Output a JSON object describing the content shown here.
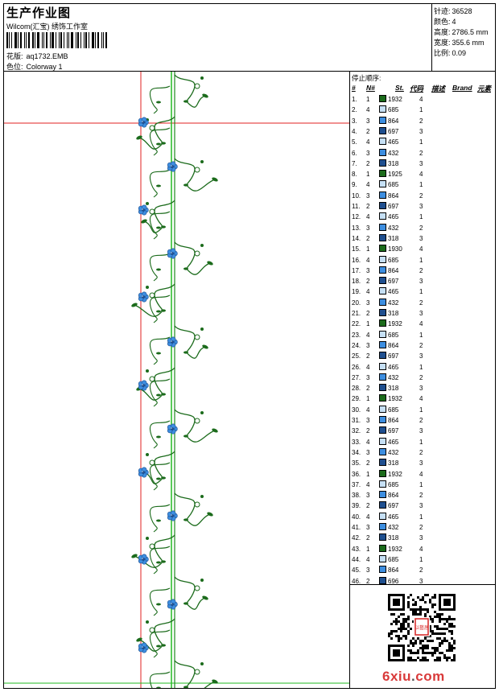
{
  "header": {
    "title": "生产作业图",
    "company": "Wilcom(汇宝) 绣饰工作室",
    "design_label": "花版:",
    "design_value": "aq1732.EMB",
    "colorway_label": "色位:",
    "colorway_value": "Colorway 1"
  },
  "stats": [
    {
      "label": "针迹:",
      "value": "36528"
    },
    {
      "label": "颜色:",
      "value": "4"
    },
    {
      "label": "高度:",
      "value": "2786.5 mm"
    },
    {
      "label": "宽度:",
      "value": "355.6 mm"
    },
    {
      "label": "比例:",
      "value": "0.09"
    }
  ],
  "stop_list": {
    "title": "停止顺序:",
    "headers": [
      "#",
      "N#",
      "St.",
      "代码",
      "描述",
      "Brand",
      "元素"
    ],
    "rows": [
      {
        "n": "1.",
        "s": "1",
        "color": "#1b6b1b",
        "code": "1932",
        "d": "4"
      },
      {
        "n": "2.",
        "s": "4",
        "color": "#c6e0f5",
        "code": "685",
        "d": "1"
      },
      {
        "n": "3.",
        "s": "3",
        "color": "#3d8ee0",
        "code": "864",
        "d": "2"
      },
      {
        "n": "4.",
        "s": "2",
        "color": "#1f4f8f",
        "code": "697",
        "d": "3"
      },
      {
        "n": "5.",
        "s": "4",
        "color": "#c6e0f5",
        "code": "465",
        "d": "1"
      },
      {
        "n": "6.",
        "s": "3",
        "color": "#3d8ee0",
        "code": "432",
        "d": "2"
      },
      {
        "n": "7.",
        "s": "2",
        "color": "#1f4f8f",
        "code": "318",
        "d": "3"
      },
      {
        "n": "8.",
        "s": "1",
        "color": "#1b6b1b",
        "code": "1925",
        "d": "4"
      },
      {
        "n": "9.",
        "s": "4",
        "color": "#c6e0f5",
        "code": "685",
        "d": "1"
      },
      {
        "n": "10.",
        "s": "3",
        "color": "#3d8ee0",
        "code": "864",
        "d": "2"
      },
      {
        "n": "11.",
        "s": "2",
        "color": "#1f4f8f",
        "code": "697",
        "d": "3"
      },
      {
        "n": "12.",
        "s": "4",
        "color": "#c6e0f5",
        "code": "465",
        "d": "1"
      },
      {
        "n": "13.",
        "s": "3",
        "color": "#3d8ee0",
        "code": "432",
        "d": "2"
      },
      {
        "n": "14.",
        "s": "2",
        "color": "#1f4f8f",
        "code": "318",
        "d": "3"
      },
      {
        "n": "15.",
        "s": "1",
        "color": "#1b6b1b",
        "code": "1930",
        "d": "4"
      },
      {
        "n": "16.",
        "s": "4",
        "color": "#c6e0f5",
        "code": "685",
        "d": "1"
      },
      {
        "n": "17.",
        "s": "3",
        "color": "#3d8ee0",
        "code": "864",
        "d": "2"
      },
      {
        "n": "18.",
        "s": "2",
        "color": "#1f4f8f",
        "code": "697",
        "d": "3"
      },
      {
        "n": "19.",
        "s": "4",
        "color": "#c6e0f5",
        "code": "465",
        "d": "1"
      },
      {
        "n": "20.",
        "s": "3",
        "color": "#3d8ee0",
        "code": "432",
        "d": "2"
      },
      {
        "n": "21.",
        "s": "2",
        "color": "#1f4f8f",
        "code": "318",
        "d": "3"
      },
      {
        "n": "22.",
        "s": "1",
        "color": "#1b6b1b",
        "code": "1932",
        "d": "4"
      },
      {
        "n": "23.",
        "s": "4",
        "color": "#c6e0f5",
        "code": "685",
        "d": "1"
      },
      {
        "n": "24.",
        "s": "3",
        "color": "#3d8ee0",
        "code": "864",
        "d": "2"
      },
      {
        "n": "25.",
        "s": "2",
        "color": "#1f4f8f",
        "code": "697",
        "d": "3"
      },
      {
        "n": "26.",
        "s": "4",
        "color": "#c6e0f5",
        "code": "465",
        "d": "1"
      },
      {
        "n": "27.",
        "s": "3",
        "color": "#3d8ee0",
        "code": "432",
        "d": "2"
      },
      {
        "n": "28.",
        "s": "2",
        "color": "#1f4f8f",
        "code": "318",
        "d": "3"
      },
      {
        "n": "29.",
        "s": "1",
        "color": "#1b6b1b",
        "code": "1932",
        "d": "4"
      },
      {
        "n": "30.",
        "s": "4",
        "color": "#c6e0f5",
        "code": "685",
        "d": "1"
      },
      {
        "n": "31.",
        "s": "3",
        "color": "#3d8ee0",
        "code": "864",
        "d": "2"
      },
      {
        "n": "32.",
        "s": "2",
        "color": "#1f4f8f",
        "code": "697",
        "d": "3"
      },
      {
        "n": "33.",
        "s": "4",
        "color": "#c6e0f5",
        "code": "465",
        "d": "1"
      },
      {
        "n": "34.",
        "s": "3",
        "color": "#3d8ee0",
        "code": "432",
        "d": "2"
      },
      {
        "n": "35.",
        "s": "2",
        "color": "#1f4f8f",
        "code": "318",
        "d": "3"
      },
      {
        "n": "36.",
        "s": "1",
        "color": "#1b6b1b",
        "code": "1932",
        "d": "4"
      },
      {
        "n": "37.",
        "s": "4",
        "color": "#c6e0f5",
        "code": "685",
        "d": "1"
      },
      {
        "n": "38.",
        "s": "3",
        "color": "#3d8ee0",
        "code": "864",
        "d": "2"
      },
      {
        "n": "39.",
        "s": "2",
        "color": "#1f4f8f",
        "code": "697",
        "d": "3"
      },
      {
        "n": "40.",
        "s": "4",
        "color": "#c6e0f5",
        "code": "465",
        "d": "1"
      },
      {
        "n": "41.",
        "s": "3",
        "color": "#3d8ee0",
        "code": "432",
        "d": "2"
      },
      {
        "n": "42.",
        "s": "2",
        "color": "#1f4f8f",
        "code": "318",
        "d": "3"
      },
      {
        "n": "43.",
        "s": "1",
        "color": "#1b6b1b",
        "code": "1932",
        "d": "4"
      },
      {
        "n": "44.",
        "s": "4",
        "color": "#c6e0f5",
        "code": "685",
        "d": "1"
      },
      {
        "n": "45.",
        "s": "3",
        "color": "#3d8ee0",
        "code": "864",
        "d": "2"
      },
      {
        "n": "46.",
        "s": "2",
        "color": "#1f4f8f",
        "code": "696",
        "d": "3"
      }
    ]
  },
  "design_colors": {
    "stem": "#1f8a1f",
    "leaf": "#1b6b1b",
    "flower_dark": "#1f4f8f",
    "flower_mid": "#3d8ee0",
    "flower_light": "#c6e0f5",
    "guide_red": "#e02020",
    "guide_green": "#22bb22"
  },
  "watermark": {
    "main": "6xiu",
    "dot": ".",
    "tld": "com",
    "seal_text": "以藝居"
  },
  "icons": {
    "qr": "qr-code-icon",
    "seal": "red-seal-icon"
  }
}
